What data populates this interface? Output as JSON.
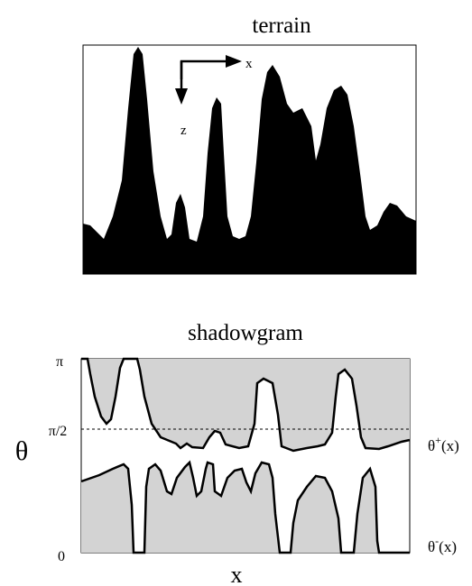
{
  "terrain": {
    "title": "terrain",
    "axis_x": "x",
    "axis_z": "z"
  },
  "shadowgram": {
    "title": "shadowgram",
    "y_labels": [
      "π",
      "π/2",
      "0"
    ],
    "y_axis_label": "θ",
    "x_axis_label": "x",
    "upper_curve_label": {
      "base": "θ",
      "sup": "+",
      "arg": "(x)"
    },
    "lower_curve_label": {
      "base": "θ",
      "sup": "-",
      "arg": "(x)"
    }
  }
}
